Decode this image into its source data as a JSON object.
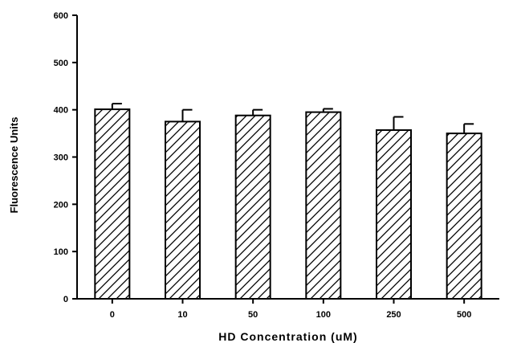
{
  "chart_data": {
    "type": "bar",
    "xlabel": "HD Concentration (uM)",
    "ylabel": "Fluorescence Units",
    "categories": [
      "0",
      "10",
      "50",
      "100",
      "250",
      "500"
    ],
    "values": [
      401,
      375,
      388,
      395,
      357,
      350
    ],
    "errors": [
      12,
      25,
      12,
      7,
      28,
      20
    ],
    "ylim": [
      0,
      600
    ],
    "yticks": [
      0,
      100,
      200,
      300,
      400,
      500,
      600
    ],
    "ytick_labels": [
      "0",
      "100",
      "200",
      "300",
      "400",
      "500",
      "600"
    ],
    "grid": false,
    "legend": "none",
    "bar_fill": "diagonal-hatch",
    "colors": {
      "ink": "#000000",
      "background": "#ffffff"
    }
  }
}
